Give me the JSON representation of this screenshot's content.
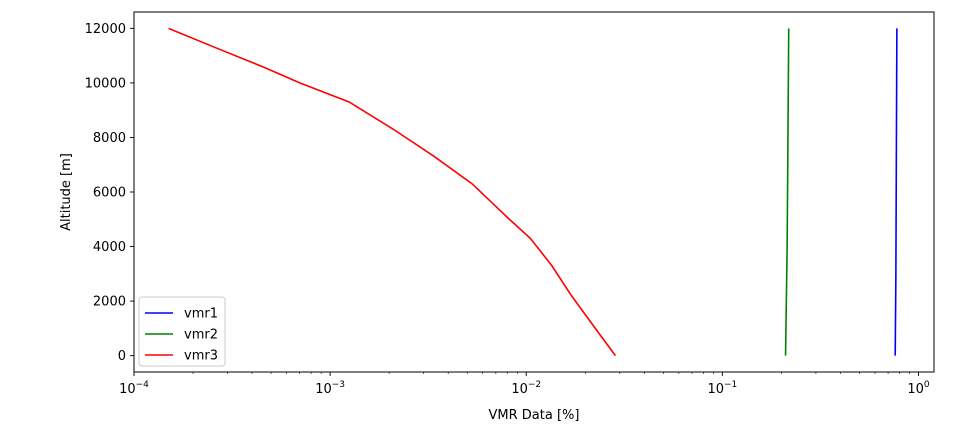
{
  "chart_data": {
    "type": "line",
    "xlabel": "VMR Data [%]",
    "ylabel": "Altitude [m]",
    "xscale": "log",
    "xlim": [
      0.0001,
      1.2
    ],
    "ylim": [
      -600,
      12600
    ],
    "xticks": [
      {
        "value": 0.0001,
        "base": "10",
        "exp": "−4"
      },
      {
        "value": 0.001,
        "base": "10",
        "exp": "−3"
      },
      {
        "value": 0.01,
        "base": "10",
        "exp": "−2"
      },
      {
        "value": 0.1,
        "base": "10",
        "exp": "−1"
      },
      {
        "value": 1,
        "base": "10",
        "exp": "0"
      }
    ],
    "yticks": [
      {
        "value": 0,
        "label": "0"
      },
      {
        "value": 2000,
        "label": "2000"
      },
      {
        "value": 4000,
        "label": "4000"
      },
      {
        "value": 6000,
        "label": "6000"
      },
      {
        "value": 8000,
        "label": "8000"
      },
      {
        "value": 10000,
        "label": "10000"
      },
      {
        "value": 12000,
        "label": "12000"
      }
    ],
    "grid": false,
    "legend_position": "lower-left",
    "series": [
      {
        "name": "vmr1",
        "color": "#0000ff",
        "points": [
          [
            0.761,
            0
          ],
          [
            0.763,
            1000
          ],
          [
            0.765,
            2000
          ],
          [
            0.767,
            3000
          ],
          [
            0.768,
            4000
          ],
          [
            0.77,
            6000
          ],
          [
            0.772,
            8000
          ],
          [
            0.774,
            10000
          ],
          [
            0.776,
            12000
          ]
        ]
      },
      {
        "name": "vmr2",
        "color": "#008000",
        "points": [
          [
            0.21,
            0
          ],
          [
            0.211,
            1000
          ],
          [
            0.212,
            2000
          ],
          [
            0.213,
            3000
          ],
          [
            0.214,
            4000
          ],
          [
            0.215,
            6000
          ],
          [
            0.216,
            8000
          ],
          [
            0.217,
            10000
          ],
          [
            0.218,
            12000
          ]
        ]
      },
      {
        "name": "vmr3",
        "color": "#ff0000",
        "points": [
          [
            0.0285,
            0
          ],
          [
            0.0225,
            1000
          ],
          [
            0.017,
            2200
          ],
          [
            0.0135,
            3300
          ],
          [
            0.0105,
            4300
          ],
          [
            0.0082,
            5000
          ],
          [
            0.0053,
            6300
          ],
          [
            0.0034,
            7300
          ],
          [
            0.0021,
            8300
          ],
          [
            0.00125,
            9300
          ],
          [
            0.0007,
            10000
          ],
          [
            0.00045,
            10600
          ],
          [
            0.00028,
            11200
          ],
          [
            0.00015,
            12000
          ]
        ]
      }
    ]
  }
}
